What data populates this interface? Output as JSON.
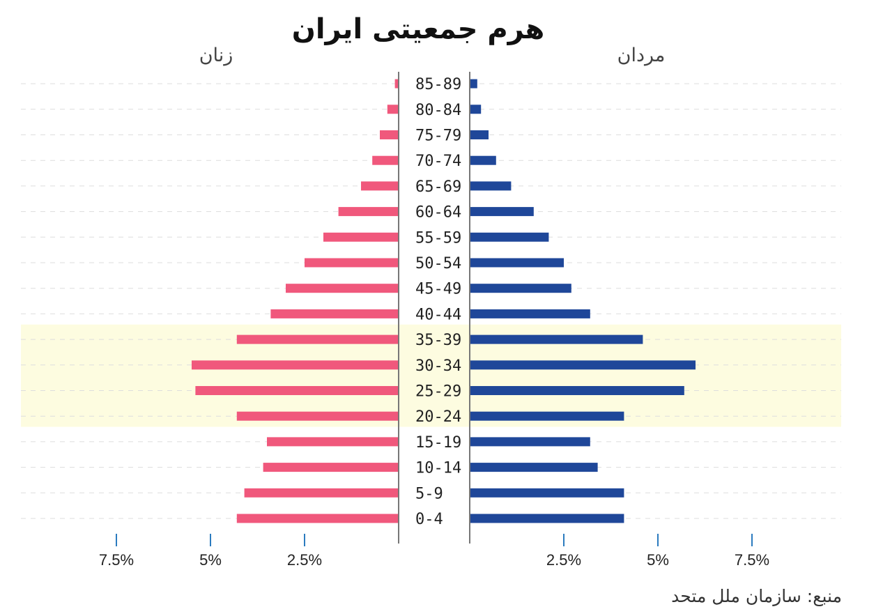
{
  "chart_data": {
    "type": "bar",
    "title": "هرم جمعیتی ایران",
    "left_label": "زنان",
    "right_label": "مردان",
    "categories": [
      "0-4",
      "5-9",
      "10-14",
      "15-19",
      "20-24",
      "25-29",
      "30-34",
      "35-39",
      "40-44",
      "45-49",
      "50-54",
      "55-59",
      "60-64",
      "65-69",
      "70-74",
      "75-79",
      "80-84",
      "85-89"
    ],
    "series": [
      {
        "name": "زنان",
        "side": "left",
        "color": "#f0587c",
        "values": [
          4.3,
          4.1,
          3.6,
          3.5,
          4.3,
          5.4,
          5.5,
          4.3,
          3.4,
          3.0,
          2.5,
          2.0,
          1.6,
          1.0,
          0.7,
          0.5,
          0.3,
          0.1
        ]
      },
      {
        "name": "مردان",
        "side": "right",
        "color": "#1f4799",
        "values": [
          4.1,
          4.1,
          3.4,
          3.2,
          4.1,
          5.7,
          6.0,
          4.6,
          3.2,
          2.7,
          2.5,
          2.1,
          1.7,
          1.1,
          0.7,
          0.5,
          0.3,
          0.2
        ]
      }
    ],
    "xlim": [
      0,
      10
    ],
    "ticks": [
      2.5,
      5,
      7.5
    ],
    "tick_labels": [
      "2.5%",
      "5%",
      "7.5%"
    ],
    "highlight_categories": [
      "20-24",
      "25-29",
      "30-34",
      "35-39"
    ],
    "highlight_color": "#fdfce0",
    "grid": true,
    "source": "منبع:  سازمان ملل متحد"
  }
}
